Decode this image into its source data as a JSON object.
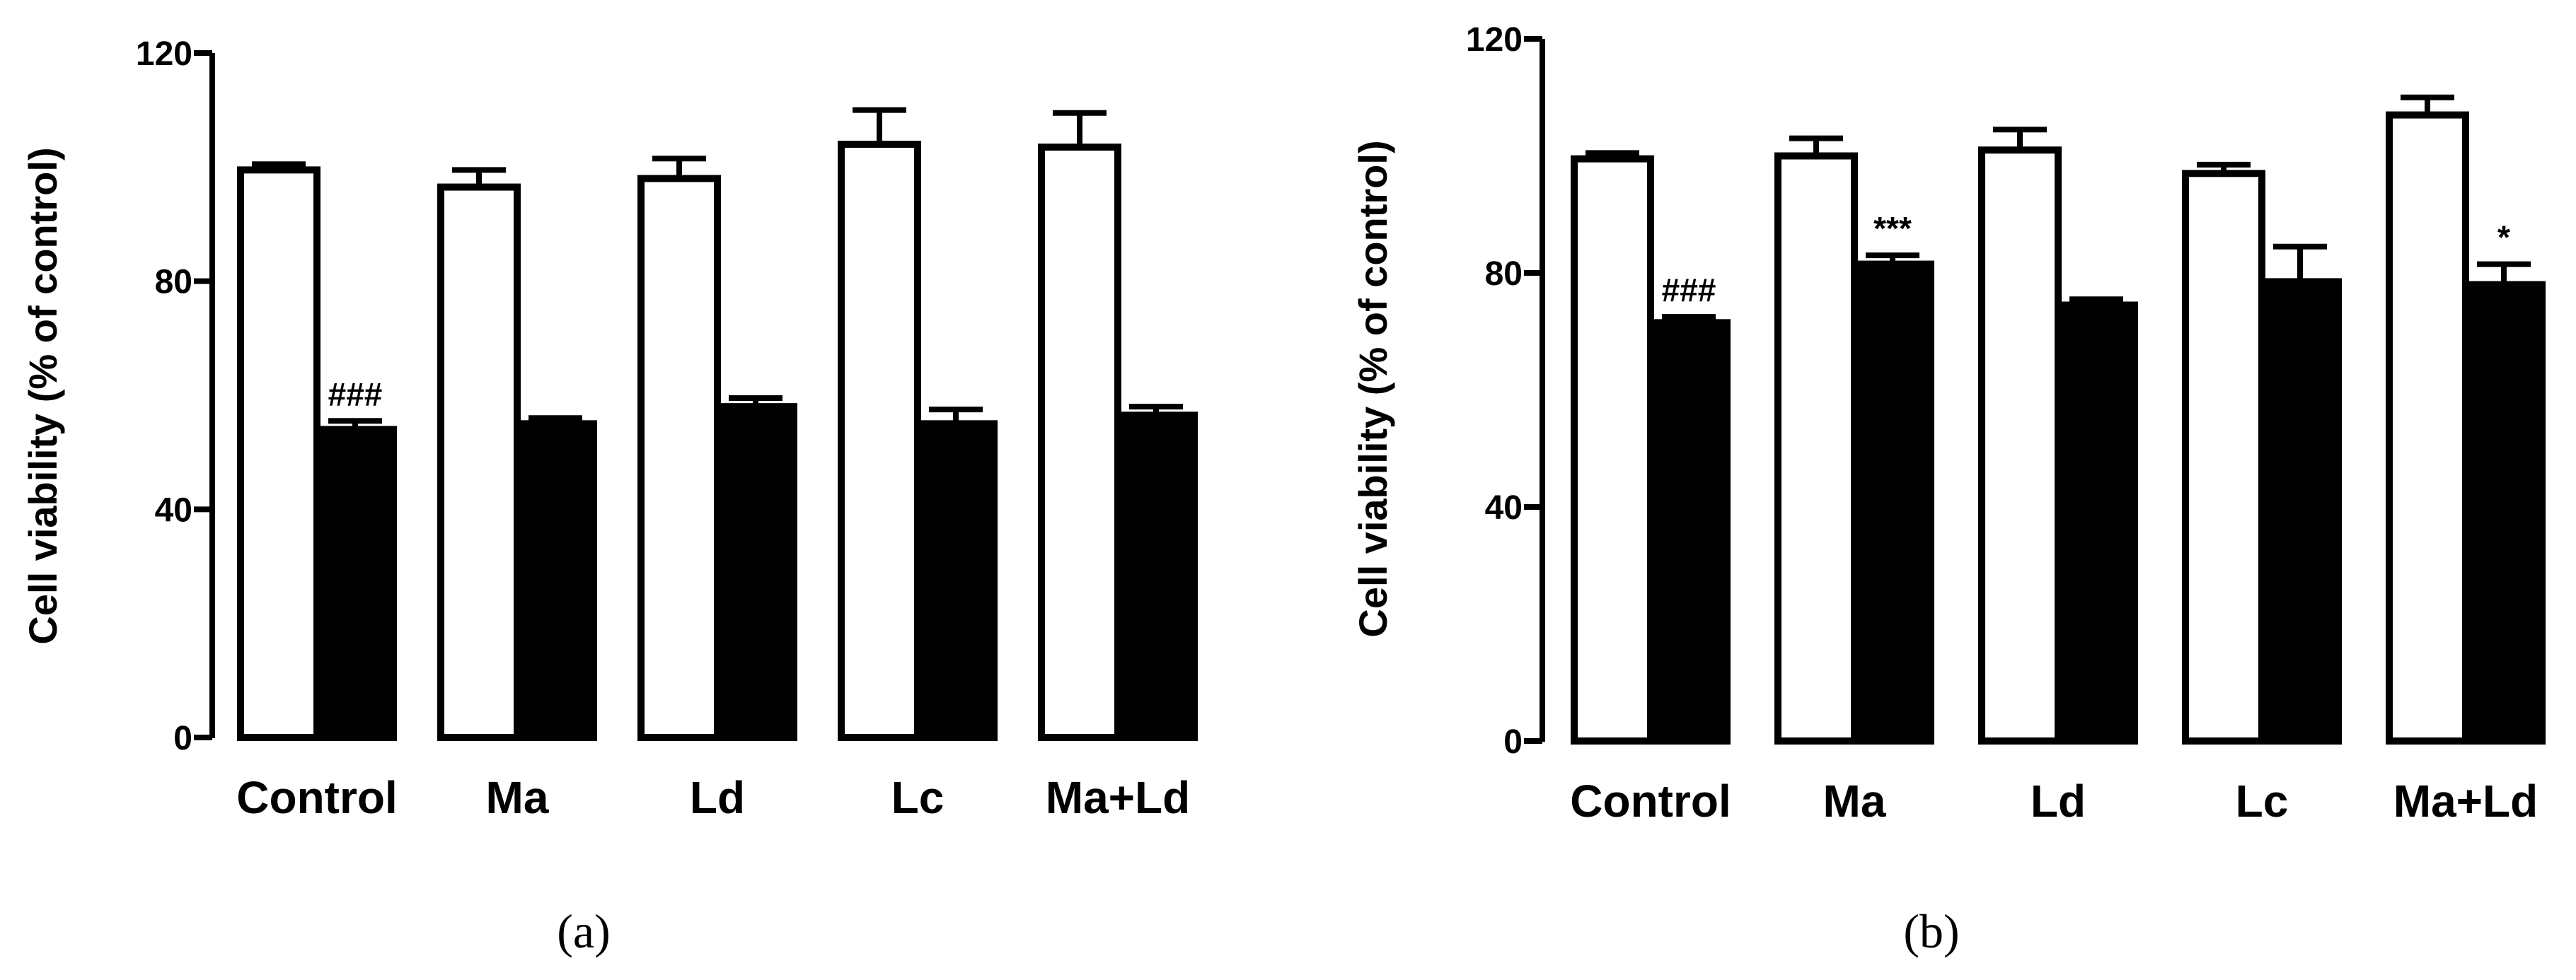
{
  "chart_data": [
    {
      "type": "bar",
      "panel_label": "(a)",
      "ylabel": "Cell viability (% of control)",
      "yticks": [
        "0",
        "40",
        "80",
        "120"
      ],
      "ylim": [
        0,
        120
      ],
      "categories": [
        "Control",
        "Ma",
        "Ld",
        "Lc",
        "Ma+Ld"
      ],
      "series": [
        {
          "fill": "#ffffff",
          "values": [
            99.5,
            96.5,
            98,
            104,
            103.5
          ],
          "errors": [
            1,
            3,
            3.5,
            6,
            6
          ]
        },
        {
          "fill": "#000000",
          "values": [
            54,
            55,
            58,
            55,
            56.5
          ],
          "errors": [
            1.5,
            1,
            1.5,
            2.5,
            1.5
          ]
        }
      ],
      "annotations": [
        {
          "category": 0,
          "series": 1,
          "text": "###"
        }
      ]
    },
    {
      "type": "bar",
      "panel_label": "(b)",
      "ylabel": "Cell viability (% of control)",
      "yticks": [
        "0",
        "40",
        "80",
        "120"
      ],
      "ylim": [
        0,
        120
      ],
      "categories": [
        "Control",
        "Ma",
        "Ld",
        "Lc",
        "Ma+Ld"
      ],
      "series": [
        {
          "fill": "#ffffff",
          "values": [
            99.5,
            100,
            101,
            97,
            107
          ],
          "errors": [
            1,
            3,
            3.5,
            1.5,
            3
          ]
        },
        {
          "fill": "#000000",
          "values": [
            71.5,
            81.5,
            74.5,
            78.5,
            78
          ],
          "errors": [
            1,
            1.5,
            1,
            6,
            3.5
          ]
        }
      ],
      "annotations": [
        {
          "category": 0,
          "series": 1,
          "text": "###"
        },
        {
          "category": 1,
          "series": 1,
          "text": "***"
        },
        {
          "category": 4,
          "series": 1,
          "text": "*"
        }
      ]
    }
  ]
}
